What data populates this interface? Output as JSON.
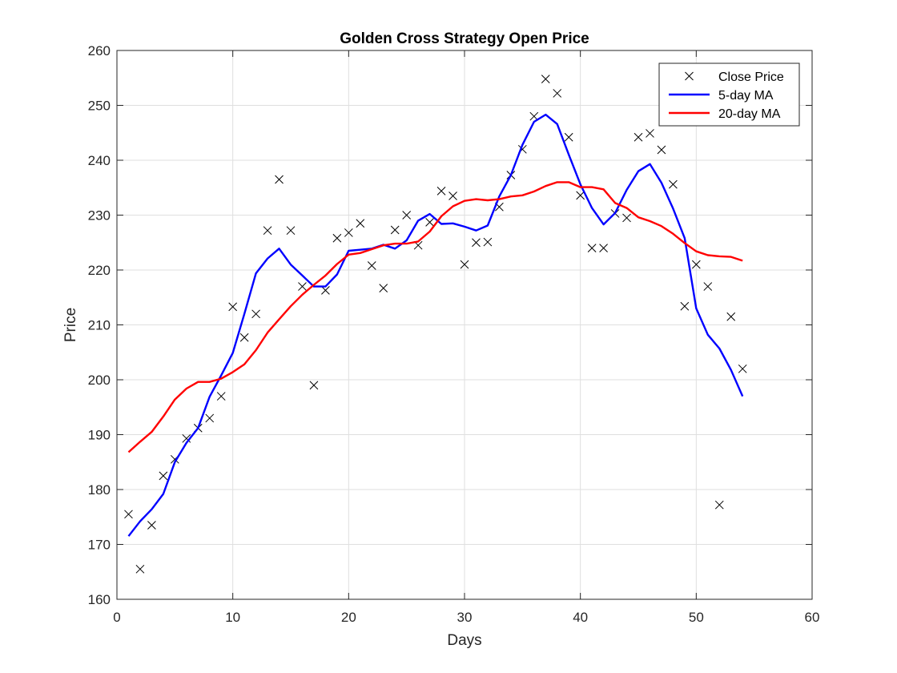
{
  "chart_data": {
    "type": "line",
    "title": "Golden Cross Strategy Open Price",
    "xlabel": "Days",
    "ylabel": "Price",
    "xlim": [
      0,
      60
    ],
    "ylim": [
      160,
      260
    ],
    "xticks": [
      0,
      10,
      20,
      30,
      40,
      50,
      60
    ],
    "yticks": [
      160,
      170,
      180,
      190,
      200,
      210,
      220,
      230,
      240,
      250,
      260
    ],
    "grid": true,
    "legend_position": "top-right",
    "series": [
      {
        "name": "Close Price",
        "style": "markers",
        "marker": "x",
        "color": "#000000",
        "x": [
          1,
          2,
          3,
          4,
          5,
          6,
          7,
          8,
          9,
          10,
          11,
          12,
          13,
          14,
          15,
          16,
          17,
          18,
          19,
          20,
          21,
          22,
          23,
          24,
          25,
          26,
          27,
          28,
          29,
          30,
          31,
          32,
          33,
          34,
          35,
          36,
          37,
          38,
          39,
          40,
          41,
          42,
          43,
          44,
          45,
          46,
          47,
          48,
          49,
          50,
          51,
          52,
          53,
          54
        ],
        "values": [
          175.5,
          165.5,
          173.5,
          182.5,
          185.5,
          189.3,
          191.2,
          193,
          197,
          213.3,
          207.7,
          212,
          227.2,
          236.5,
          227.2,
          217,
          199,
          216.3,
          225.8,
          226.8,
          228.5,
          220.8,
          216.7,
          227.3,
          230,
          224.5,
          228.7,
          234.4,
          233.5,
          221,
          225,
          225.1,
          231.5,
          237.3,
          242,
          248,
          254.8,
          252.2,
          244.2,
          233.6,
          224,
          224,
          230.3,
          229.5,
          244.2,
          244.9,
          241.9,
          235.6,
          213.4,
          221,
          217,
          177.2,
          211.5,
          202
        ]
      },
      {
        "name": "5-day MA",
        "style": "line",
        "color": "#0000ff",
        "x": [
          1,
          2,
          3,
          4,
          5,
          6,
          7,
          8,
          9,
          10,
          11,
          12,
          13,
          14,
          15,
          16,
          17,
          18,
          19,
          20,
          21,
          22,
          23,
          24,
          25,
          26,
          27,
          28,
          29,
          30,
          31,
          32,
          33,
          34,
          35,
          36,
          37,
          38,
          39,
          40,
          41,
          42,
          43,
          44,
          45,
          46,
          47,
          48,
          49,
          50,
          51,
          52,
          53,
          54
        ],
        "values": [
          171.5,
          174.2,
          176.4,
          179.2,
          185,
          188.5,
          191.2,
          196.9,
          200.8,
          204.9,
          212,
          219.4,
          222.1,
          223.9,
          221,
          219,
          217,
          217,
          219.2,
          223.5,
          223.7,
          223.9,
          224.6,
          223.9,
          225.4,
          229,
          230.2,
          228.4,
          228.5,
          227.9,
          227.2,
          228.1,
          233.4,
          237.3,
          242.8,
          247,
          248.3,
          246.6,
          241,
          235.6,
          231.3,
          228.3,
          230.4,
          234.6,
          238,
          239.3,
          235.9,
          231.2,
          225.8,
          213,
          208.2,
          205.7,
          201.8,
          197
        ]
      },
      {
        "name": "20-day MA",
        "style": "line",
        "color": "#ff0000",
        "x": [
          1,
          2,
          3,
          4,
          5,
          6,
          7,
          8,
          9,
          10,
          11,
          12,
          13,
          14,
          15,
          16,
          17,
          18,
          19,
          20,
          21,
          22,
          23,
          24,
          25,
          26,
          27,
          28,
          29,
          30,
          31,
          32,
          33,
          34,
          35,
          36,
          37,
          38,
          39,
          40,
          41,
          42,
          43,
          44,
          45,
          46,
          47,
          48,
          49,
          50,
          51,
          52,
          53,
          54
        ],
        "values": [
          186.8,
          188.7,
          190.5,
          193.3,
          196.4,
          198.4,
          199.6,
          199.6,
          200.2,
          201.4,
          202.8,
          205.4,
          208.6,
          211,
          213.4,
          215.5,
          217.3,
          219,
          221.1,
          222.8,
          223.1,
          223.8,
          224.5,
          224.8,
          224.8,
          225.2,
          227,
          229.8,
          231.6,
          232.6,
          232.9,
          232.7,
          232.9,
          233.4,
          233.6,
          234.3,
          235.3,
          236,
          236,
          235.1,
          235.1,
          234.7,
          232.2,
          231.3,
          229.6,
          228.9,
          228,
          226.6,
          224.9,
          223.4,
          222.7,
          222.5,
          222.4,
          221.7
        ]
      }
    ]
  }
}
